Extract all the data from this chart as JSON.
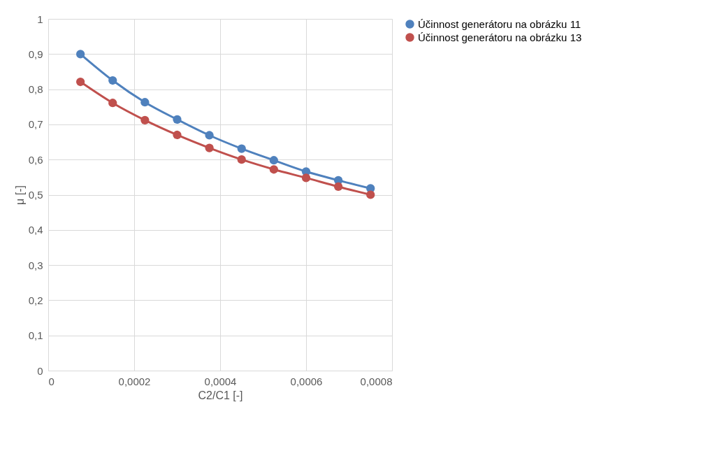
{
  "chart_data": {
    "type": "line",
    "xlabel": "C2/C1 [-]",
    "ylabel": "μ [-]",
    "x": [
      7.5e-05,
      0.00015,
      0.000225,
      0.0003,
      0.000375,
      0.00045,
      0.000525,
      0.0006,
      0.000675,
      0.00075
    ],
    "series": [
      {
        "name": "Účinnost generátoru na obrázku 11",
        "color": "#4f81bd",
        "values": [
          0.9,
          0.825,
          0.763,
          0.714,
          0.669,
          0.631,
          0.598,
          0.566,
          0.541,
          0.518
        ]
      },
      {
        "name": "Účinnost generátoru na obrázku 13",
        "color": "#c0504d",
        "values": [
          0.821,
          0.761,
          0.712,
          0.67,
          0.633,
          0.6,
          0.572,
          0.548,
          0.523,
          0.5
        ]
      }
    ],
    "xlim": [
      0,
      0.0008
    ],
    "xticks": [
      0,
      {
        "value": 0.0002,
        "label": "0,0002"
      },
      {
        "value": 0.0004,
        "label": "0,0004"
      },
      {
        "value": 0.0006,
        "label": "0,0006"
      },
      {
        "value": 0.0008,
        "label": "0,0008"
      }
    ],
    "ylim": [
      0,
      1
    ],
    "yticks": [
      0,
      {
        "value": 0.1,
        "label": "0,1"
      },
      {
        "value": 0.2,
        "label": "0,2"
      },
      {
        "value": 0.3,
        "label": "0,3"
      },
      {
        "value": 0.4,
        "label": "0,4"
      },
      {
        "value": 0.5,
        "label": "0,5"
      },
      {
        "value": 0.6,
        "label": "0,6"
      },
      {
        "value": 0.7,
        "label": "0,7"
      },
      {
        "value": 0.8,
        "label": "0,8"
      },
      {
        "value": 0.9,
        "label": "0,9"
      },
      1
    ],
    "grid": true,
    "legend": "right",
    "marker": "circle",
    "line_style": "solid"
  }
}
